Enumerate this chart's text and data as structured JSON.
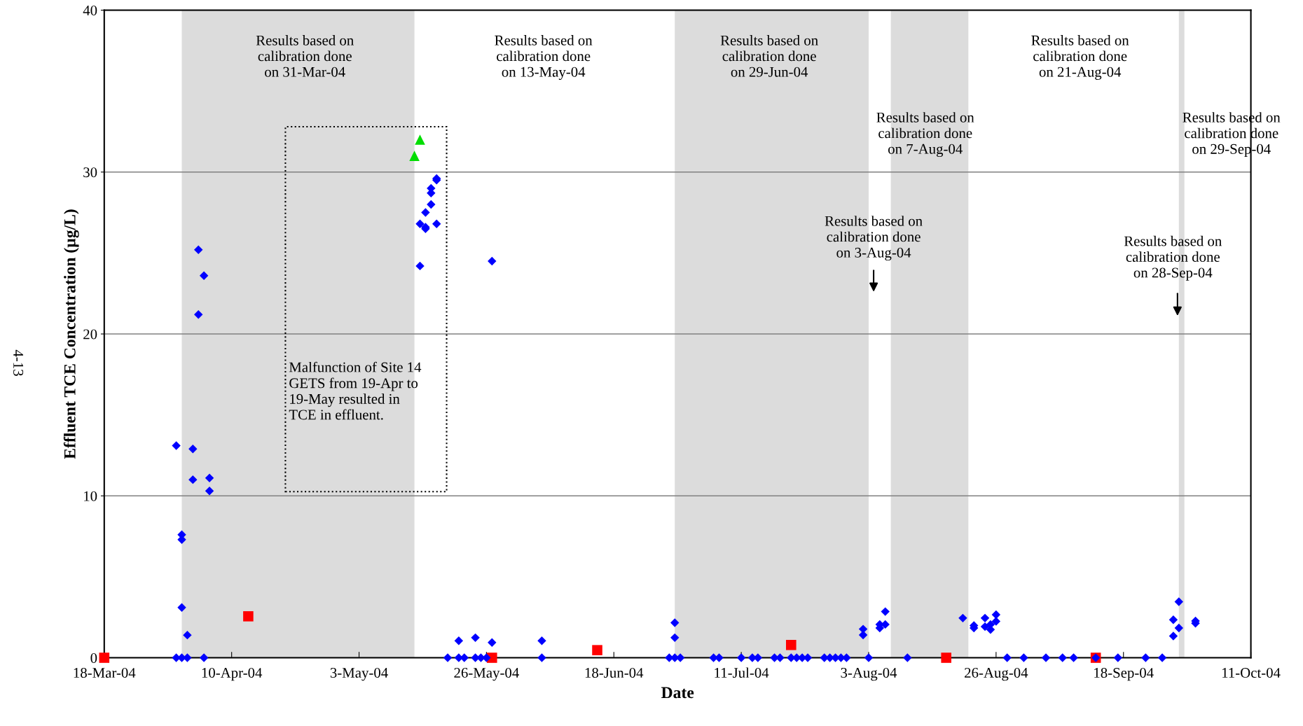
{
  "chart_data": {
    "type": "scatter",
    "xlabel": "Date",
    "ylabel": "Effluent TCE Concentration (µg/L)",
    "xlim": [
      "2004-03-18",
      "2004-10-11"
    ],
    "ylim": [
      0,
      40
    ],
    "xticks": [
      {
        "value": "2004-03-18",
        "label": "18-Mar-04"
      },
      {
        "value": "2004-04-10",
        "label": "10-Apr-04"
      },
      {
        "value": "2004-05-03",
        "label": "3-May-04"
      },
      {
        "value": "2004-05-26",
        "label": "26-May-04"
      },
      {
        "value": "2004-06-18",
        "label": "18-Jun-04"
      },
      {
        "value": "2004-07-11",
        "label": "11-Jul-04"
      },
      {
        "value": "2004-08-03",
        "label": "3-Aug-04"
      },
      {
        "value": "2004-08-26",
        "label": "26-Aug-04"
      },
      {
        "value": "2004-09-18",
        "label": "18-Sep-04"
      },
      {
        "value": "2004-10-11",
        "label": "11-Oct-04"
      }
    ],
    "yticks": [
      0,
      10,
      20,
      30,
      40
    ],
    "grid": "y",
    "legend": false,
    "series": [
      {
        "marker": "diamond",
        "color": "#0000ff",
        "x": [
          "2004-03-31",
          "2004-03-31",
          "2004-04-01",
          "2004-04-01",
          "2004-04-01",
          "2004-04-01",
          "2004-04-02",
          "2004-04-02",
          "2004-04-03",
          "2004-04-03",
          "2004-04-04",
          "2004-04-04",
          "2004-04-05",
          "2004-04-05",
          "2004-04-06",
          "2004-04-06",
          "2004-05-14",
          "2004-05-14",
          "2004-05-15",
          "2004-05-15",
          "2004-05-15",
          "2004-05-16",
          "2004-05-16",
          "2004-05-16",
          "2004-05-17",
          "2004-05-17",
          "2004-05-17",
          "2004-05-19",
          "2004-05-21",
          "2004-05-21",
          "2004-05-22",
          "2004-05-24",
          "2004-05-24",
          "2004-05-25",
          "2004-05-26",
          "2004-05-27",
          "2004-05-27",
          "2004-06-05",
          "2004-06-05",
          "2004-06-28",
          "2004-06-29",
          "2004-06-29",
          "2004-06-29",
          "2004-06-30",
          "2004-07-06",
          "2004-07-07",
          "2004-07-11",
          "2004-07-13",
          "2004-07-14",
          "2004-07-17",
          "2004-07-18",
          "2004-07-20",
          "2004-07-21",
          "2004-07-22",
          "2004-07-23",
          "2004-07-26",
          "2004-07-27",
          "2004-07-28",
          "2004-07-29",
          "2004-07-30",
          "2004-08-02",
          "2004-08-02",
          "2004-08-03",
          "2004-08-05",
          "2004-08-05",
          "2004-08-06",
          "2004-08-06",
          "2004-08-10",
          "2004-08-20",
          "2004-08-22",
          "2004-08-22",
          "2004-08-24",
          "2004-08-24",
          "2004-08-25",
          "2004-08-25",
          "2004-08-26",
          "2004-08-26",
          "2004-08-28",
          "2004-08-31",
          "2004-09-04",
          "2004-09-07",
          "2004-09-09",
          "2004-09-13",
          "2004-09-17",
          "2004-09-22",
          "2004-09-25",
          "2004-09-27",
          "2004-09-27",
          "2004-09-28",
          "2004-09-28",
          "2004-10-01",
          "2004-10-01"
        ],
        "values": [
          13.1,
          0,
          7.6,
          7.3,
          3.1,
          0,
          1.4,
          0,
          12.9,
          11.0,
          25.2,
          21.2,
          23.6,
          0,
          11.1,
          10.3,
          26.8,
          24.2,
          27.5,
          26.6,
          26.5,
          29.0,
          28.7,
          28.0,
          29.6,
          29.5,
          26.8,
          0,
          1.05,
          0,
          0,
          1.24,
          0,
          0,
          0,
          0.94,
          24.5,
          1.05,
          0,
          0,
          2.16,
          1.24,
          0,
          0,
          0,
          0,
          0,
          0,
          0,
          0,
          0,
          0,
          0,
          0,
          0,
          0,
          0,
          0,
          0,
          0,
          1.77,
          1.41,
          0,
          2.06,
          1.84,
          2.85,
          2.06,
          0,
          2.45,
          1.99,
          1.84,
          2.45,
          1.92,
          2.06,
          1.74,
          2.66,
          2.25,
          0,
          0,
          0,
          0,
          0,
          0,
          0,
          0,
          0,
          2.35,
          1.34,
          3.46,
          1.84,
          2.27,
          2.13
        ]
      },
      {
        "marker": "square",
        "color": "#ff0000",
        "x": [
          "2004-03-18",
          "2004-04-13",
          "2004-05-27",
          "2004-06-15",
          "2004-07-20",
          "2004-08-17",
          "2004-09-13"
        ],
        "values": [
          0,
          2.56,
          0,
          0.47,
          0.79,
          0,
          0
        ]
      },
      {
        "marker": "triangle",
        "color": "#00dd00",
        "x": [
          "2004-05-13",
          "2004-05-14"
        ],
        "values": [
          31.0,
          32.0
        ]
      }
    ],
    "bands": [
      {
        "axis": "x",
        "from": "2004-04-01",
        "to": "2004-05-13",
        "color": "#dcdcdc"
      },
      {
        "axis": "x",
        "from": "2004-06-29",
        "to": "2004-08-03",
        "color": "#dcdcdc"
      },
      {
        "axis": "x",
        "from": "2004-08-07",
        "to": "2004-08-21",
        "color": "#dcdcdc"
      },
      {
        "axis": "x",
        "from": "2004-09-28",
        "to": "2004-09-29",
        "color": "#dcdcdc"
      }
    ],
    "annotations": [
      "Results based on\ncalibration done\non 31-Mar-04",
      "Results based on\ncalibration done\non 13-May-04",
      "Results based on\ncalibration done\non 29-Jun-04",
      "Results based on\ncalibration done\non 3-Aug-04",
      "Results based on\ncalibration done\non 7-Aug-04",
      "Results based on\ncalibration done\non 21-Aug-04",
      "Results based on\ncalibration done\non 28-Sep-04",
      "Results based on\ncalibration done\non 29-Sep-04",
      "Malfunction of Site 14\nGETS from 19-Apr to\n19-May resulted in\nTCE in effluent.",
      "4-13"
    ]
  }
}
